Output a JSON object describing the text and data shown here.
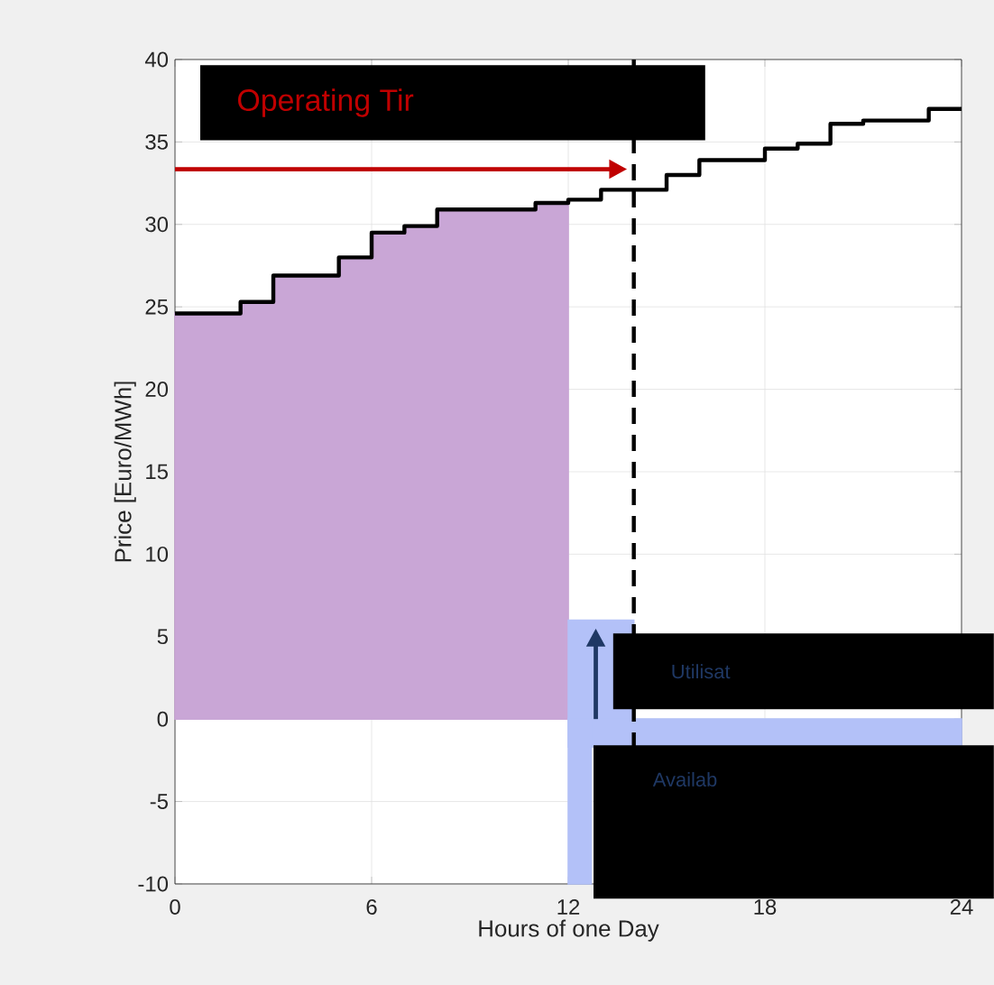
{
  "chart_data": {
    "type": "step",
    "xlabel": "Hours of one Day",
    "ylabel": "Price [Euro/MWh]",
    "xlim": [
      0,
      24
    ],
    "ylim": [
      -10,
      40
    ],
    "xticks": [
      0,
      6,
      12,
      18,
      24
    ],
    "yticks": [
      -10,
      -5,
      0,
      5,
      10,
      15,
      20,
      25,
      30,
      35,
      40
    ],
    "grid": true,
    "series": [
      {
        "type": "area",
        "color": "#c9a6d6",
        "x": [
          0,
          1,
          2,
          3,
          4,
          5,
          6,
          7,
          8,
          9,
          10,
          11,
          12
        ],
        "values": [
          24.6,
          24.6,
          25.3,
          26.9,
          26.9,
          28.0,
          29.5,
          29.9,
          30.9,
          30.9,
          30.9,
          31.3,
          31.3
        ]
      },
      {
        "type": "area",
        "color": "#b3c1f8",
        "x": [
          12,
          14
        ],
        "values": [
          6,
          6
        ]
      },
      {
        "type": "area",
        "color": "#b3c1f8",
        "x": [
          12,
          24
        ],
        "values": [
          -1.7,
          -1.7
        ]
      },
      {
        "type": "area",
        "color": "#b3c1f8",
        "x": [
          12,
          12.7
        ],
        "values": [
          -10,
          -10
        ]
      },
      {
        "color": "#000000",
        "x": [
          0,
          1,
          2,
          3,
          4,
          5,
          6,
          7,
          8,
          9,
          10,
          11,
          12,
          13,
          14,
          15,
          16,
          17,
          18,
          19,
          20,
          21,
          22,
          23,
          24
        ],
        "values": [
          24.6,
          24.6,
          25.3,
          26.9,
          26.9,
          28.0,
          29.5,
          29.9,
          30.9,
          30.9,
          30.9,
          31.3,
          31.5,
          32.1,
          32.1,
          33.0,
          33.9,
          33.9,
          34.6,
          34.9,
          36.1,
          36.3,
          36.3,
          37.0,
          37.0
        ]
      }
    ],
    "ref_lines": [
      {
        "axis": "x",
        "value": 14,
        "color": "#000000",
        "line_style": "dashed"
      }
    ],
    "annotations": [
      "Operating Tir",
      "Utilisat",
      "Availab"
    ]
  }
}
